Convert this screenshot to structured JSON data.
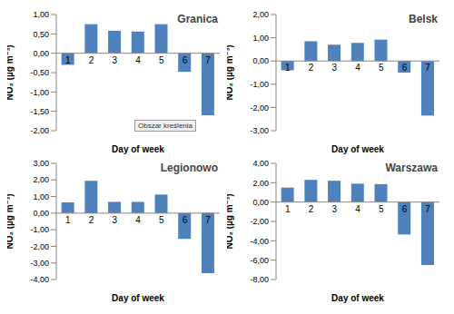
{
  "chart_data": [
    {
      "type": "bar",
      "title": "Granica",
      "x_label": "Day of week",
      "y_label": "NO₂ (µg m⁻³)",
      "categories": [
        "1",
        "2",
        "3",
        "4",
        "5",
        "6",
        "7"
      ],
      "values": [
        -0.3,
        0.75,
        0.58,
        0.56,
        0.75,
        -0.48,
        -1.6
      ],
      "color": "#4f81bd",
      "ylim": [
        -2,
        1
      ],
      "yticks": [
        {
          "value": -2,
          "label": "-2,00"
        },
        {
          "value": -1.5,
          "label": "-1,50"
        },
        {
          "value": -1,
          "label": "-1,00"
        },
        {
          "value": -0.5,
          "label": "-0,50"
        },
        {
          "value": 0,
          "label": "0,00"
        },
        {
          "value": 0.5,
          "label": "0,50"
        },
        {
          "value": 1,
          "label": "1,00"
        }
      ],
      "annotation": "Obszar kreślenia"
    },
    {
      "type": "bar",
      "title": "Belsk",
      "x_label": "Day of week",
      "y_label": "NO₂ (µg m⁻³)",
      "categories": [
        "1",
        "2",
        "3",
        "4",
        "5",
        "6",
        "7"
      ],
      "values": [
        -0.4,
        0.85,
        0.7,
        0.78,
        0.92,
        -0.5,
        -2.35
      ],
      "color": "#4f81bd",
      "ylim": [
        -3,
        2
      ],
      "yticks": [
        {
          "value": -3,
          "label": "-3,00"
        },
        {
          "value": -2,
          "label": "-2,00"
        },
        {
          "value": -1,
          "label": "-1,00"
        },
        {
          "value": 0,
          "label": "0,00"
        },
        {
          "value": 1,
          "label": "1,00"
        },
        {
          "value": 2,
          "label": "2,00"
        }
      ]
    },
    {
      "type": "bar",
      "title": "Legionowo",
      "x_label": "Day of week",
      "y_label": "NO₂ (µg m⁻³)",
      "categories": [
        "1",
        "2",
        "3",
        "4",
        "5",
        "6",
        "7"
      ],
      "values": [
        0.65,
        1.95,
        0.68,
        0.68,
        1.12,
        -1.55,
        -3.62
      ],
      "color": "#4f81bd",
      "ylim": [
        -4,
        3
      ],
      "yticks": [
        {
          "value": -4,
          "label": "-4,00"
        },
        {
          "value": -3,
          "label": "-3,00"
        },
        {
          "value": -2,
          "label": "-2,00"
        },
        {
          "value": -1,
          "label": "-1,00"
        },
        {
          "value": 0,
          "label": "0,00"
        },
        {
          "value": 1,
          "label": "1,00"
        },
        {
          "value": 2,
          "label": "2,00"
        },
        {
          "value": 3,
          "label": "3,00"
        }
      ]
    },
    {
      "type": "bar",
      "title": "Warszawa",
      "x_label": "Day of week",
      "y_label": "NO₂ (µg m⁻³)",
      "categories": [
        "1",
        "2",
        "3",
        "4",
        "5",
        "6",
        "7"
      ],
      "values": [
        1.5,
        2.3,
        2.2,
        1.9,
        1.85,
        -3.35,
        -6.5
      ],
      "color": "#4f81bd",
      "ylim": [
        -8,
        4
      ],
      "yticks": [
        {
          "value": -8,
          "label": "-8,00"
        },
        {
          "value": -6,
          "label": "-6,00"
        },
        {
          "value": -4,
          "label": "-4,00"
        },
        {
          "value": -2,
          "label": "-2,00"
        },
        {
          "value": 0,
          "label": "0,00"
        },
        {
          "value": 2,
          "label": "2,00"
        },
        {
          "value": 4,
          "label": "4,00"
        }
      ]
    }
  ]
}
